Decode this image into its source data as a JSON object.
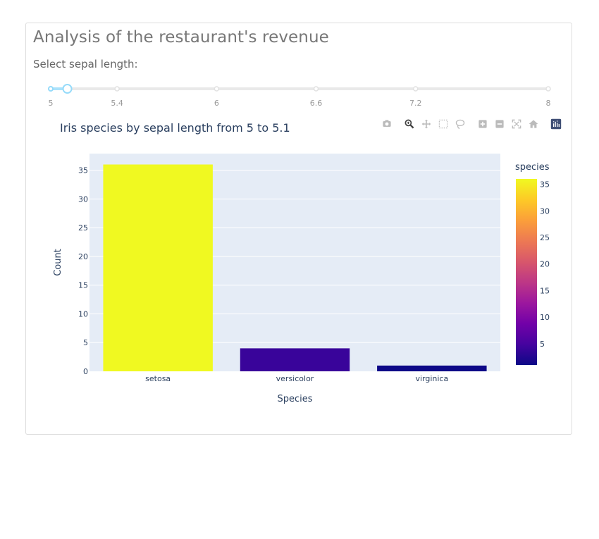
{
  "page": {
    "title": "Analysis of the restaurant's revenue",
    "slider_label": "Select sepal length:"
  },
  "slider": {
    "min": 5,
    "max": 8,
    "value": [
      5,
      5.1
    ],
    "marks": [
      {
        "value": 5,
        "label": "5"
      },
      {
        "value": 5.4,
        "label": "5.4"
      },
      {
        "value": 6,
        "label": "6"
      },
      {
        "value": 6.6,
        "label": "6.6"
      },
      {
        "value": 7.2,
        "label": "7.2"
      },
      {
        "value": 8,
        "label": "8"
      }
    ],
    "track_color": "#e9e9e9",
    "active_color": "#abe2fb",
    "dot_color": "#96dbfa"
  },
  "modebar": {
    "icons": [
      "camera-icon",
      "zoom-icon",
      "pan-icon",
      "box-select-icon",
      "lasso-icon",
      "zoom-in-icon",
      "zoom-out-icon",
      "autoscale-icon",
      "reset-axes-icon",
      "plotly-logo-icon"
    ]
  },
  "chart_data": {
    "type": "bar",
    "title": "Iris species by sepal length from 5 to 5.1",
    "xlabel": "Species",
    "ylabel": "Count",
    "categories": [
      "setosa",
      "versicolor",
      "virginica"
    ],
    "values": [
      36,
      4,
      1
    ],
    "ylim": [
      0,
      37.9
    ],
    "yticks": [
      0,
      5,
      10,
      15,
      20,
      25,
      30,
      35
    ],
    "grid": true,
    "plot_bg": "#e5ecf6",
    "colorbar": {
      "title": "species",
      "range": [
        1,
        36
      ],
      "ticks": [
        5,
        10,
        15,
        20,
        25,
        30,
        35
      ],
      "colorscale": [
        "#0d0887",
        "#46039f",
        "#7201a8",
        "#9c179e",
        "#bd3786",
        "#d8576b",
        "#ed7953",
        "#fb9f3a",
        "#fdca26",
        "#f0f921"
      ]
    }
  }
}
